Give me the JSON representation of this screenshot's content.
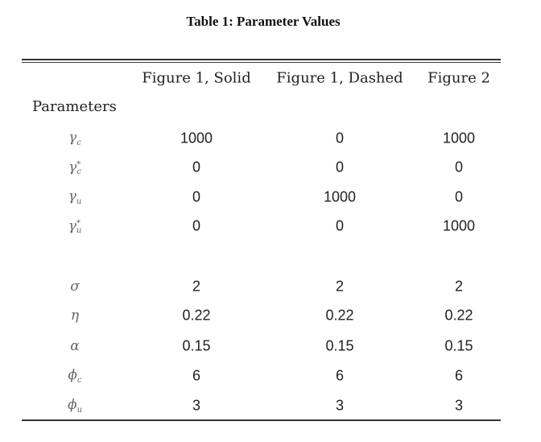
{
  "title": "Table 1: Parameter Values",
  "table": {
    "columns": [
      "Figure 1, Solid",
      "Figure 1, Dashed",
      "Figure 2"
    ],
    "row_header": "Parameters",
    "rows": [
      {
        "symbol": "γ",
        "sub": "c",
        "values": [
          1000,
          0,
          1000
        ]
      },
      {
        "symbol": "γ",
        "sub": "c",
        "sup": "*",
        "values": [
          0,
          0,
          0
        ]
      },
      {
        "symbol": "γ",
        "sub": "u",
        "values": [
          0,
          1000,
          0
        ]
      },
      {
        "symbol": "γ",
        "sub": "u",
        "sup": "*",
        "values": [
          0,
          0,
          1000
        ]
      },
      {
        "symbol": "σ",
        "values": [
          2,
          2,
          2
        ]
      },
      {
        "symbol": "η",
        "values": [
          0.22,
          0.22,
          0.22
        ]
      },
      {
        "symbol": "α",
        "values": [
          0.15,
          0.15,
          0.15
        ]
      },
      {
        "symbol": "ϕ",
        "sub": "c",
        "values": [
          6,
          6,
          6
        ]
      },
      {
        "symbol": "ϕ",
        "sub": "u",
        "values": [
          3,
          3,
          3
        ]
      }
    ]
  }
}
